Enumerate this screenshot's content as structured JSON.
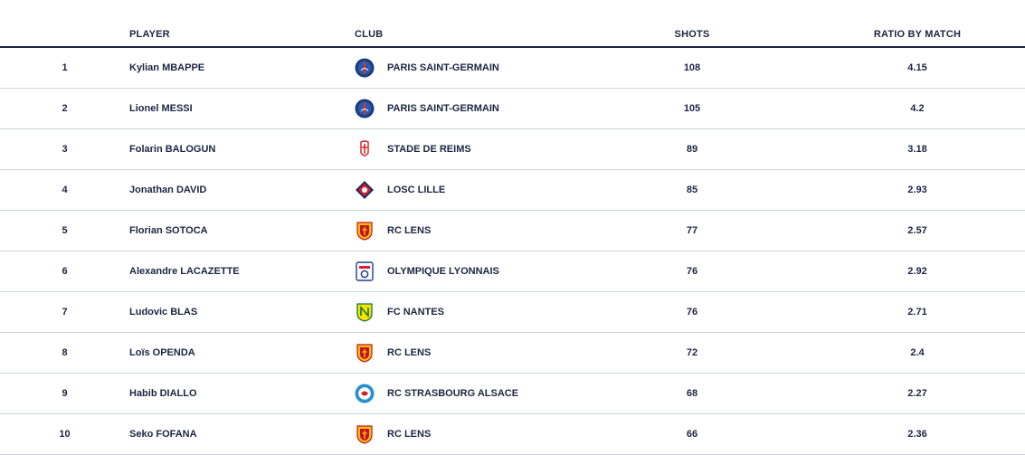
{
  "headers": {
    "player": "PLAYER",
    "club": "CLUB",
    "shots": "SHOTS",
    "ratio": "RATIO BY MATCH"
  },
  "rows": [
    {
      "rank": "1",
      "player": "Kylian MBAPPE",
      "club": "PARIS SAINT-GERMAIN",
      "logo": "psg-logo",
      "shots": "108",
      "ratio": "4.15"
    },
    {
      "rank": "2",
      "player": "Lionel MESSI",
      "club": "PARIS SAINT-GERMAIN",
      "logo": "psg-logo",
      "shots": "105",
      "ratio": "4.2"
    },
    {
      "rank": "3",
      "player": "Folarin BALOGUN",
      "club": "STADE DE REIMS",
      "logo": "reims-logo",
      "shots": "89",
      "ratio": "3.18"
    },
    {
      "rank": "4",
      "player": "Jonathan DAVID",
      "club": "LOSC LILLE",
      "logo": "lille-logo",
      "shots": "85",
      "ratio": "2.93"
    },
    {
      "rank": "5",
      "player": "Florian SOTOCA",
      "club": "RC LENS",
      "logo": "lens-logo",
      "shots": "77",
      "ratio": "2.57"
    },
    {
      "rank": "6",
      "player": "Alexandre LACAZETTE",
      "club": "OLYMPIQUE LYONNAIS",
      "logo": "lyon-logo",
      "shots": "76",
      "ratio": "2.92"
    },
    {
      "rank": "7",
      "player": "Ludovic BLAS",
      "club": "FC NANTES",
      "logo": "nantes-logo",
      "shots": "76",
      "ratio": "2.71"
    },
    {
      "rank": "8",
      "player": "Loïs OPENDA",
      "club": "RC LENS",
      "logo": "lens-logo",
      "shots": "72",
      "ratio": "2.4"
    },
    {
      "rank": "9",
      "player": "Habib DIALLO",
      "club": "RC STRASBOURG ALSACE",
      "logo": "strasbourg-logo",
      "shots": "68",
      "ratio": "2.27"
    },
    {
      "rank": "10",
      "player": "Seko FOFANA",
      "club": "RC LENS",
      "logo": "lens-logo",
      "shots": "66",
      "ratio": "2.36"
    }
  ],
  "colors": {
    "text": "#1b2640",
    "divider": "#cfd3da",
    "header_rule": "#1b2640"
  }
}
